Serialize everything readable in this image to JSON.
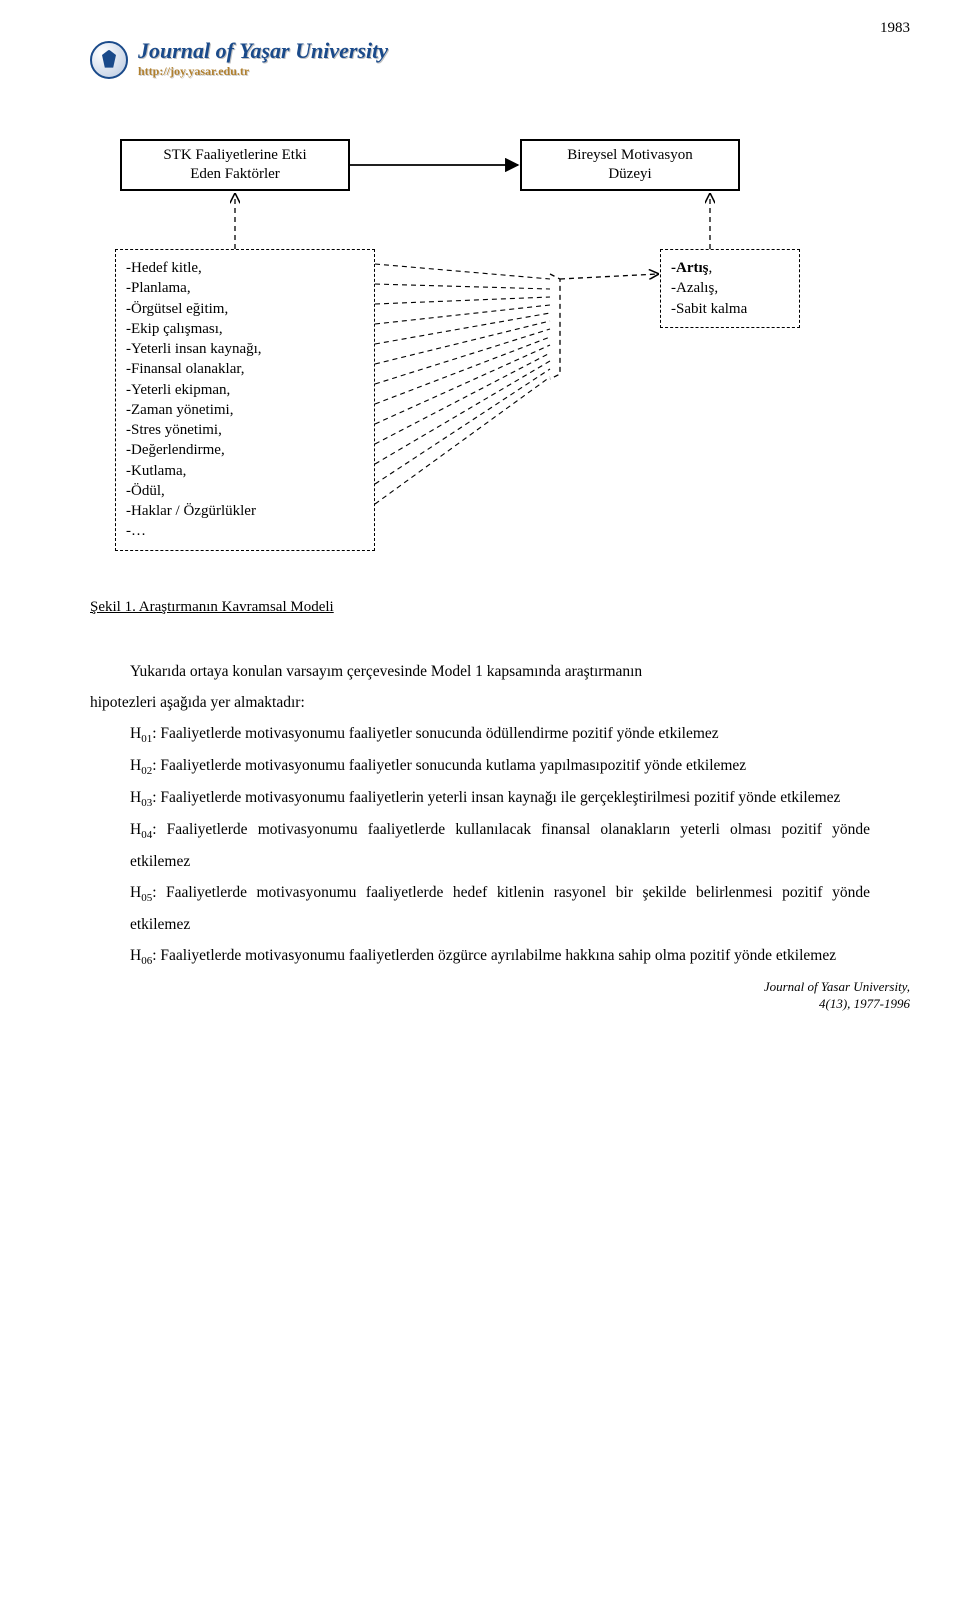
{
  "page_number": "1983",
  "journal": {
    "title": "Journal of Yaşar University",
    "url": "http://joy.yasar.edu.tr"
  },
  "diagram": {
    "box_top_left": "STK Faaliyetlerine Etki\nEden Faktörler",
    "box_top_right": "Bireysel Motivasyon\nDüzeyi",
    "factors_lines": [
      "-Hedef kitle,",
      "-Planlama,",
      "-Örgütsel eğitim,",
      "-Ekip çalışması,",
      "-Yeterli insan kaynağı,",
      "-Finansal olanaklar,",
      "-Yeterli ekipman,",
      "-Zaman yönetimi,",
      "-Stres yönetimi,",
      "-Değerlendirme,",
      "-Kutlama,",
      "-Ödül,",
      "-Haklar / Özgürlükler",
      "-…"
    ],
    "outcomes_lines": [
      "-Artış,",
      "-Azalış,",
      "-Sabit kalma"
    ],
    "solid_line_color": "#000000",
    "dashed_line_color": "#000000"
  },
  "figure_caption": "Şekil 1. Araştırmanın Kavramsal Modeli",
  "intro_para_1": "Yukarıda ortaya konulan varsayım çerçevesinde Model 1 kapsamında araştırmanın",
  "intro_para_2": "hipotezleri aşağıda yer almaktadır:",
  "hypotheses": [
    {
      "label": "H",
      "sub": "01",
      "text": ": Faaliyetlerde motivasyonumu faaliyetler sonucunda ödüllendirme pozitif yönde etkilemez"
    },
    {
      "label": "H",
      "sub": "02",
      "text": ": Faaliyetlerde motivasyonumu faaliyetler sonucunda kutlama yapılmasıpozitif yönde etkilemez"
    },
    {
      "label": "H",
      "sub": "03",
      "text": ": Faaliyetlerde motivasyonumu faaliyetlerin yeterli insan kaynağı ile gerçekleştirilmesi pozitif yönde etkilemez"
    },
    {
      "label": "H",
      "sub": "04",
      "text": ": Faaliyetlerde motivasyonumu faaliyetlerde kullanılacak finansal olanakların yeterli olması pozitif yönde etkilemez"
    },
    {
      "label": "H",
      "sub": "05",
      "text": ": Faaliyetlerde motivasyonumu faaliyetlerde hedef kitlenin rasyonel bir şekilde belirlenmesi pozitif yönde etkilemez"
    },
    {
      "label": "H",
      "sub": "06",
      "text": ": Faaliyetlerde motivasyonumu faaliyetlerden özgürce ayrılabilme hakkına sahip olma pozitif yönde etkilemez"
    }
  ],
  "footer": {
    "line1": "Journal of Yasar University,",
    "line2": "4(13), 1977-1996"
  }
}
